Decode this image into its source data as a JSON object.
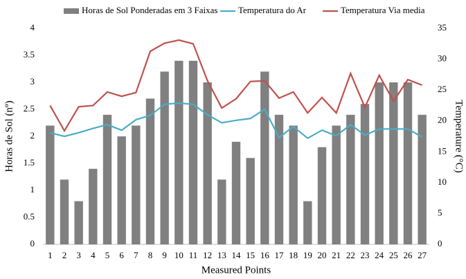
{
  "chart_data": {
    "type": "bar-line",
    "x_label": "Measured Points",
    "y_label": "Horas de Sol (nº)",
    "y2_label": "Temperature (°C)",
    "categories": [
      "1",
      "2",
      "3",
      "4",
      "5",
      "6",
      "7",
      "8",
      "9",
      "10",
      "11",
      "12",
      "13",
      "14",
      "15",
      "16",
      "17",
      "18",
      "19",
      "20",
      "21",
      "22",
      "23",
      "24",
      "25",
      "26",
      "27"
    ],
    "series": [
      {
        "name": "Horas de Sol Ponderadas em 3 Faixas",
        "type": "bar",
        "color": "#808080",
        "values": [
          2.2,
          1.2,
          0.8,
          1.4,
          2.4,
          2.0,
          2.2,
          2.7,
          3.2,
          3.4,
          3.4,
          3.0,
          1.2,
          1.9,
          1.6,
          3.2,
          2.4,
          2.2,
          0.8,
          1.8,
          2.2,
          2.4,
          2.6,
          3.0,
          3.0,
          3.0,
          2.4
        ]
      },
      {
        "name": "Temperatura do Ar",
        "type": "line",
        "axis": "y2",
        "color": "#4bacc6",
        "values": [
          18.1,
          17.5,
          18.1,
          18.8,
          19.4,
          18.5,
          20.2,
          20.9,
          22.7,
          22.9,
          22.7,
          21.0,
          19.7,
          20.1,
          20.4,
          21.9,
          17.3,
          19.1,
          17.2,
          18.5,
          17.6,
          19.4,
          17.7,
          18.7,
          18.7,
          18.7,
          17.4
        ]
      },
      {
        "name": "Temperatura Via media",
        "type": "line",
        "axis": "y2",
        "color": "#c0504d",
        "values": [
          22.5,
          18.4,
          22.3,
          22.5,
          24.7,
          24.0,
          24.6,
          31.3,
          32.6,
          33.1,
          32.5,
          26.5,
          22.1,
          23.6,
          26.4,
          26.5,
          23.7,
          24.7,
          21.3,
          23.8,
          21.3,
          27.7,
          22.2,
          27.4,
          23.2,
          26.7,
          25.8
        ]
      }
    ],
    "ylim": [
      0,
      4
    ],
    "yticks": [
      0,
      0.5,
      1,
      1.5,
      2,
      2.5,
      3,
      3.5,
      4
    ],
    "y2lim": [
      0,
      35
    ],
    "y2ticks": [
      0,
      5,
      10,
      15,
      20,
      25,
      30,
      35
    ]
  }
}
